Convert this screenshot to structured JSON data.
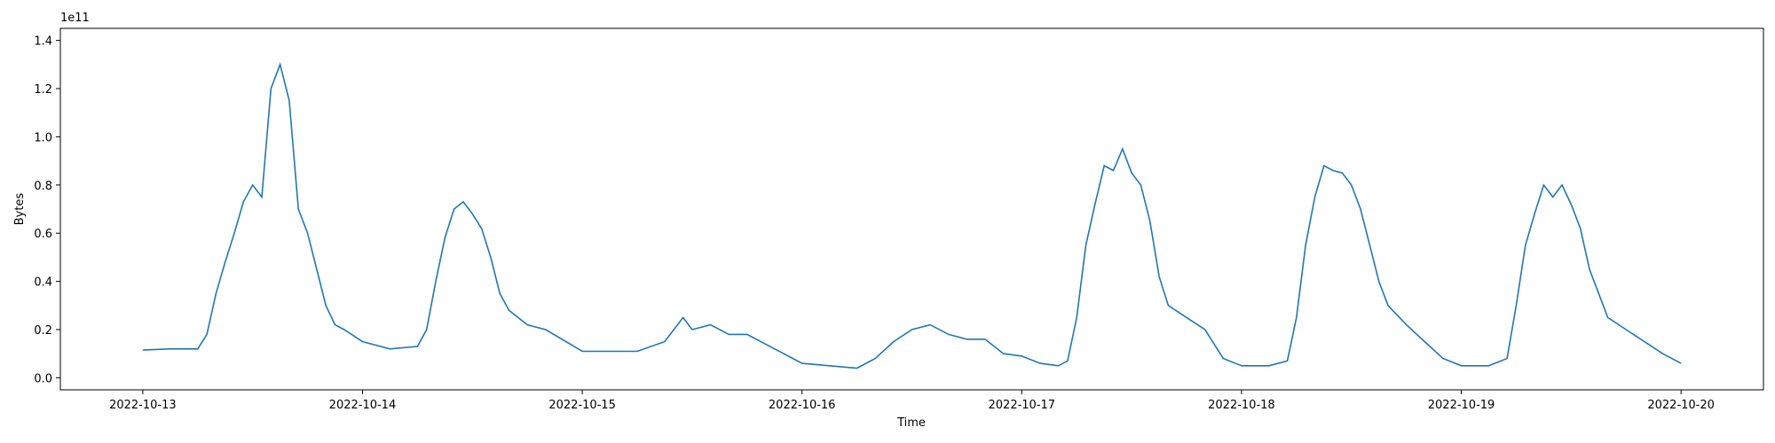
{
  "chart_data": {
    "type": "line",
    "xlabel": "Time",
    "ylabel": "Bytes",
    "y_offset_label": "1e11",
    "xlim": [
      "2022-10-12T15:00",
      "2022-10-20T09:00"
    ],
    "ylim": [
      -0.05,
      1.45
    ],
    "x_ticks": [
      "2022-10-13",
      "2022-10-14",
      "2022-10-15",
      "2022-10-16",
      "2022-10-17",
      "2022-10-18",
      "2022-10-19",
      "2022-10-20"
    ],
    "y_ticks": [
      "0.0",
      "0.2",
      "0.4",
      "0.6",
      "0.8",
      "1.0",
      "1.2",
      "1.4"
    ],
    "grid": false,
    "color": "#1f77b4",
    "series": [
      {
        "x": [
          "2022-10-13T00:00",
          "2022-10-13T03:00",
          "2022-10-13T06:00",
          "2022-10-13T07:00",
          "2022-10-13T08:00",
          "2022-10-13T09:00",
          "2022-10-13T10:00",
          "2022-10-13T11:00",
          "2022-10-13T12:00",
          "2022-10-13T13:00",
          "2022-10-13T14:00",
          "2022-10-13T15:00",
          "2022-10-13T16:00",
          "2022-10-13T17:00",
          "2022-10-13T18:00",
          "2022-10-13T19:00",
          "2022-10-13T20:00",
          "2022-10-13T21:00",
          "2022-10-13T22:00",
          "2022-10-14T00:00",
          "2022-10-14T03:00",
          "2022-10-14T06:00",
          "2022-10-14T07:00",
          "2022-10-14T08:00",
          "2022-10-14T09:00",
          "2022-10-14T10:00",
          "2022-10-14T11:00",
          "2022-10-14T12:00",
          "2022-10-14T13:00",
          "2022-10-14T14:00",
          "2022-10-14T15:00",
          "2022-10-14T16:00",
          "2022-10-14T18:00",
          "2022-10-14T20:00",
          "2022-10-15T00:00",
          "2022-10-15T03:00",
          "2022-10-15T06:00",
          "2022-10-15T09:00",
          "2022-10-15T11:00",
          "2022-10-15T12:00",
          "2022-10-15T14:00",
          "2022-10-15T16:00",
          "2022-10-15T18:00",
          "2022-10-15T20:00",
          "2022-10-15T22:00",
          "2022-10-16T00:00",
          "2022-10-16T03:00",
          "2022-10-16T06:00",
          "2022-10-16T08:00",
          "2022-10-16T10:00",
          "2022-10-16T12:00",
          "2022-10-16T14:00",
          "2022-10-16T16:00",
          "2022-10-16T18:00",
          "2022-10-16T20:00",
          "2022-10-16T22:00",
          "2022-10-17T00:00",
          "2022-10-17T02:00",
          "2022-10-17T04:00",
          "2022-10-17T05:00",
          "2022-10-17T06:00",
          "2022-10-17T07:00",
          "2022-10-17T08:00",
          "2022-10-17T09:00",
          "2022-10-17T10:00",
          "2022-10-17T11:00",
          "2022-10-17T12:00",
          "2022-10-17T13:00",
          "2022-10-17T14:00",
          "2022-10-17T15:00",
          "2022-10-17T16:00",
          "2022-10-17T18:00",
          "2022-10-17T20:00",
          "2022-10-17T22:00",
          "2022-10-18T00:00",
          "2022-10-18T03:00",
          "2022-10-18T05:00",
          "2022-10-18T06:00",
          "2022-10-18T07:00",
          "2022-10-18T08:00",
          "2022-10-18T09:00",
          "2022-10-18T10:00",
          "2022-10-18T11:00",
          "2022-10-18T12:00",
          "2022-10-18T13:00",
          "2022-10-18T14:00",
          "2022-10-18T15:00",
          "2022-10-18T16:00",
          "2022-10-18T18:00",
          "2022-10-18T20:00",
          "2022-10-18T22:00",
          "2022-10-19T00:00",
          "2022-10-19T03:00",
          "2022-10-19T05:00",
          "2022-10-19T06:00",
          "2022-10-19T07:00",
          "2022-10-19T08:00",
          "2022-10-19T09:00",
          "2022-10-19T10:00",
          "2022-10-19T11:00",
          "2022-10-19T12:00",
          "2022-10-19T13:00",
          "2022-10-19T14:00",
          "2022-10-19T15:00",
          "2022-10-19T16:00",
          "2022-10-19T18:00",
          "2022-10-19T20:00",
          "2022-10-19T22:00",
          "2022-10-20T00:00"
        ],
        "values": [
          0.115,
          0.12,
          0.12,
          0.18,
          0.35,
          0.48,
          0.6,
          0.73,
          0.8,
          0.75,
          1.2,
          1.3,
          1.15,
          0.7,
          0.6,
          0.45,
          0.3,
          0.22,
          0.2,
          0.15,
          0.12,
          0.13,
          0.2,
          0.4,
          0.58,
          0.7,
          0.73,
          0.68,
          0.62,
          0.5,
          0.35,
          0.28,
          0.22,
          0.2,
          0.11,
          0.11,
          0.11,
          0.15,
          0.25,
          0.2,
          0.22,
          0.18,
          0.18,
          0.14,
          0.1,
          0.06,
          0.05,
          0.04,
          0.08,
          0.15,
          0.2,
          0.22,
          0.18,
          0.16,
          0.16,
          0.1,
          0.09,
          0.06,
          0.05,
          0.07,
          0.25,
          0.55,
          0.72,
          0.88,
          0.86,
          0.95,
          0.85,
          0.8,
          0.65,
          0.42,
          0.3,
          0.25,
          0.2,
          0.08,
          0.05,
          0.05,
          0.07,
          0.25,
          0.55,
          0.75,
          0.88,
          0.86,
          0.85,
          0.8,
          0.7,
          0.55,
          0.4,
          0.3,
          0.22,
          0.15,
          0.08,
          0.05,
          0.05,
          0.08,
          0.3,
          0.55,
          0.68,
          0.8,
          0.75,
          0.8,
          0.72,
          0.62,
          0.45,
          0.35,
          0.25,
          0.2,
          0.15,
          0.1,
          0.06
        ]
      }
    ]
  }
}
